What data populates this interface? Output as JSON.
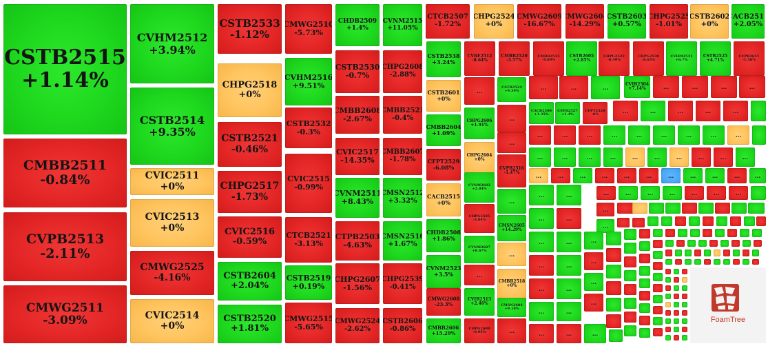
{
  "colors": {
    "up": "#1ed81e",
    "down": "#e42626",
    "flat": "#ffc45e",
    "highlight": "#4aa8f5"
  },
  "more_label": "...",
  "branding": {
    "name": "FoamTree"
  },
  "chart_data": {
    "type": "treemap",
    "title": "",
    "color_scale": {
      "positive": "green",
      "negative": "red",
      "zero": "orange"
    },
    "items": [
      {
        "label": "CSTB2515",
        "change": "+1.14%",
        "value": 1.14
      },
      {
        "label": "CMBB2511",
        "change": "-0.84%",
        "value": -0.84
      },
      {
        "label": "CVPB2513",
        "change": "-2.11%",
        "value": -2.11
      },
      {
        "label": "CMWG2511",
        "change": "-3.09%",
        "value": -3.09
      },
      {
        "label": "CVHM2512",
        "change": "+3.94%",
        "value": 3.94
      },
      {
        "label": "CSTB2514",
        "change": "+9.35%",
        "value": 9.35
      },
      {
        "label": "CVIC2511",
        "change": "+0%",
        "value": 0
      },
      {
        "label": "CVIC2513",
        "change": "+0%",
        "value": 0
      },
      {
        "label": "CMWG2525",
        "change": "-4.16%",
        "value": -4.16
      },
      {
        "label": "CVIC2514",
        "change": "+0%",
        "value": 0
      },
      {
        "label": "CSTB2533",
        "change": "-1.12%",
        "value": -1.12
      },
      {
        "label": "CHPG2518",
        "change": "+0%",
        "value": 0
      },
      {
        "label": "CSTB2521",
        "change": "-0.46%",
        "value": -0.46
      },
      {
        "label": "CHPG2517",
        "change": "-1.73%",
        "value": -1.73
      },
      {
        "label": "CVIC2516",
        "change": "-0.59%",
        "value": -0.59
      },
      {
        "label": "CSTB2604",
        "change": "+2.04%",
        "value": 2.04
      },
      {
        "label": "CSTB2520",
        "change": "+1.81%",
        "value": 1.81
      },
      {
        "label": "CMWG2510",
        "change": "-5.73%",
        "value": -5.73
      },
      {
        "label": "CVHM2516",
        "change": "+9.51%",
        "value": 9.51
      },
      {
        "label": "CSTB2532",
        "change": "-0.3%",
        "value": -0.3
      },
      {
        "label": "CVIC2515",
        "change": "-0.99%",
        "value": -0.99
      },
      {
        "label": "CTCB2521",
        "change": "-3.13%",
        "value": -3.13
      },
      {
        "label": "CSTB2519",
        "change": "+0.19%",
        "value": 0.19
      },
      {
        "label": "CMWG2515",
        "change": "-5.65%",
        "value": -5.65
      },
      {
        "label": "CHDB2509",
        "change": "+1.4%",
        "value": 1.4
      },
      {
        "label": "CVNM2515",
        "change": "+11.05%",
        "value": 11.05
      },
      {
        "label": "CSTB2530",
        "change": "-0.7%",
        "value": -0.7
      },
      {
        "label": "CHPG2608",
        "change": "-2.88%",
        "value": -2.88
      },
      {
        "label": "CMBB2608",
        "change": "-2.67%",
        "value": -2.67
      },
      {
        "label": "CMBB2521",
        "change": "-0.4%",
        "value": -0.4
      },
      {
        "label": "CVIC2517",
        "change": "-14.35%",
        "value": -14.35
      },
      {
        "label": "CMBB2607",
        "change": "-1.78%",
        "value": -1.78
      },
      {
        "label": "CVNM2511",
        "change": "+8.43%",
        "value": 8.43
      },
      {
        "label": "CMSN2512",
        "change": "+3.32%",
        "value": 3.32
      },
      {
        "label": "CTPB2503",
        "change": "-4.63%",
        "value": -4.63
      },
      {
        "label": "CMSN2516",
        "change": "+1.67%",
        "value": 1.67
      },
      {
        "label": "CHPG2607",
        "change": "-1.56%",
        "value": -1.56
      },
      {
        "label": "CHPG2539",
        "change": "-0.41%",
        "value": -0.41
      },
      {
        "label": "CMWG2524",
        "change": "-2.62%",
        "value": -2.62
      },
      {
        "label": "CSTB2606",
        "change": "-0.86%",
        "value": -0.86
      },
      {
        "label": "CTCB2507",
        "change": "-1.72%",
        "value": -1.72
      },
      {
        "label": "CHPG2524",
        "change": "+0%",
        "value": 0
      },
      {
        "label": "CMWG2609",
        "change": "-16.67%",
        "value": -16.67
      },
      {
        "label": "CMWG2604",
        "change": "-14.29%",
        "value": -14.29
      },
      {
        "label": "CSTB2603",
        "change": "+0.57%",
        "value": 0.57
      },
      {
        "label": "CHPG2525",
        "change": "-1.01%",
        "value": -1.01
      },
      {
        "label": "CSTB2602",
        "change": "+0%",
        "value": 0
      },
      {
        "label": "CACB2511",
        "change": "+2.05%",
        "value": 2.05
      },
      {
        "label": "CSTB2538",
        "change": "+3.24%",
        "value": 3.24
      },
      {
        "label": "CSTB2601",
        "change": "+0%",
        "value": 0
      },
      {
        "label": "CMBB2604",
        "change": "+1.09%",
        "value": 1.09
      },
      {
        "label": "CFPT2529",
        "change": "-6.08%",
        "value": -6.08
      },
      {
        "label": "CACB2515",
        "change": "+0%",
        "value": 0
      },
      {
        "label": "CHDB2508",
        "change": "+1.86%",
        "value": 1.86
      },
      {
        "label": "CVNM2523",
        "change": "+3.5%",
        "value": 3.5
      },
      {
        "label": "CMWG2608",
        "change": "-23.3%",
        "value": -23.3
      },
      {
        "label": "CMBB2606",
        "change": "+15.29%",
        "value": 15.29
      },
      {
        "label": "CVRE2512",
        "change": "-8.64%",
        "value": -8.64
      },
      {
        "label": "CMBB2520",
        "change": "-3.57%",
        "value": -3.57
      },
      {
        "label": "CMBB2513",
        "change": "-4.69%",
        "value": -4.69
      },
      {
        "label": "CSTB2605",
        "change": "+2.85%",
        "value": 2.85
      },
      {
        "label": "CHPG2522",
        "change": "-8.49%",
        "value": -8.49
      },
      {
        "label": "CHPG2538",
        "change": "-8.65%",
        "value": -8.65
      },
      {
        "label": "CVHM2511",
        "change": "+8.7%",
        "value": 8.7
      },
      {
        "label": "CSTB2525",
        "change": "+4.71%",
        "value": 4.71
      },
      {
        "label": "CVPB2611",
        "change": "-1.58%",
        "value": -1.58
      },
      {
        "label": "CHPG2606",
        "change": "+1.91%",
        "value": 1.91
      },
      {
        "label": "CHPG2604",
        "change": "+0%",
        "value": 0
      },
      {
        "label": "CVNM2602",
        "change": "+2.84%",
        "value": 2.84
      },
      {
        "label": "CHPG2505",
        "change": "-3.84%",
        "value": -3.84
      },
      {
        "label": "CVNM2607",
        "change": "+8.67%",
        "value": 8.67
      },
      {
        "label": "CVIB2513",
        "change": "+2.46%",
        "value": 2.46
      },
      {
        "label": "CHPG2609",
        "change": "-0.95%",
        "value": -0.95
      },
      {
        "label": "CSTB2524",
        "change": "+9.39%",
        "value": 9.39
      },
      {
        "label": "CVPB2516",
        "change": "-1.47%",
        "value": -1.47
      },
      {
        "label": "CMSN2605",
        "change": "+14.29%",
        "value": 14.29
      },
      {
        "label": "CMBB2518",
        "change": "+0%",
        "value": 0
      },
      {
        "label": "CMSN2604",
        "change": "+9.18%",
        "value": 9.18
      },
      {
        "label": "CVIB2504",
        "change": "+7.14%",
        "value": 7.14
      },
      {
        "label": "CACB2508",
        "change": "+1.35%",
        "value": 1.35
      },
      {
        "label": "CSTB2527",
        "change": "+1.4%",
        "value": 1.4
      },
      {
        "label": "CFPT2528",
        "change": "-6%",
        "value": -6
      }
    ]
  }
}
